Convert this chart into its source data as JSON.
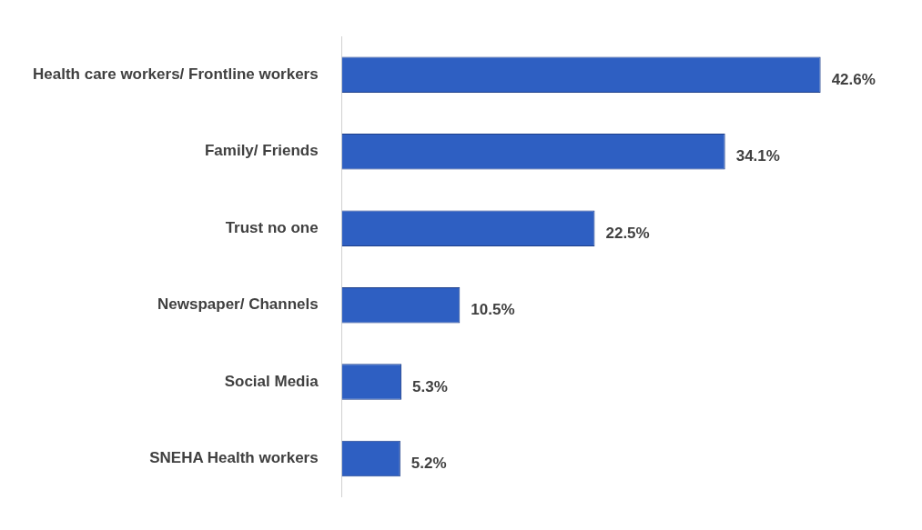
{
  "chart_data": {
    "type": "bar",
    "orientation": "horizontal",
    "categories": [
      "Health care workers/ Frontline workers",
      "Family/ Friends",
      "Trust no one",
      "Newspaper/ Channels",
      "Social Media",
      "SNEHA Health workers"
    ],
    "values": [
      42.6,
      34.1,
      22.5,
      10.5,
      5.3,
      5.2
    ],
    "color": "#2e5fc2",
    "value_labels": [
      "42.6%",
      "34.1%",
      "22.5%",
      "10.5%",
      "5.3%",
      "5.2%"
    ],
    "grid": false,
    "legend": false
  }
}
